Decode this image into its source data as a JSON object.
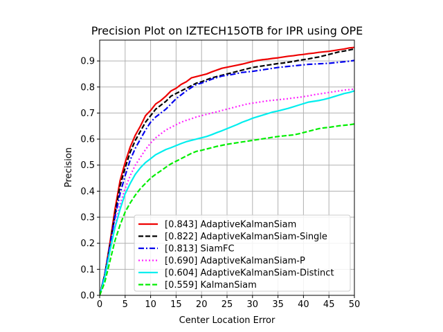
{
  "chart_data": {
    "type": "line",
    "title": "Precision Plot on IZTECH15OTB for IPR using OPE",
    "xlabel": "Center Location Error",
    "ylabel": "Precision",
    "xlim": [
      0,
      50
    ],
    "ylim": [
      0,
      0.98
    ],
    "xticks": [
      0,
      5,
      10,
      15,
      20,
      25,
      30,
      35,
      40,
      45,
      50
    ],
    "yticks": [
      0.0,
      0.1,
      0.2,
      0.3,
      0.4,
      0.5,
      0.6,
      0.7,
      0.8,
      0.9
    ],
    "grid": true,
    "legend_position": "bottom-right",
    "x": [
      0,
      1,
      2,
      3,
      4,
      5,
      6,
      7,
      8,
      9,
      10,
      11,
      12,
      13,
      14,
      15,
      16,
      17,
      18,
      19,
      20,
      21,
      22,
      23,
      24,
      25,
      26,
      27,
      28,
      29,
      30,
      31,
      32,
      33,
      34,
      35,
      36,
      37,
      38,
      39,
      40,
      41,
      42,
      43,
      44,
      45,
      46,
      47,
      48,
      49,
      50
    ],
    "series": [
      {
        "name": "[0.843] AdaptiveKalmanSiam",
        "color": "#ee0000",
        "dash": "solid",
        "values": [
          0.0,
          0.08,
          0.2,
          0.33,
          0.44,
          0.51,
          0.57,
          0.615,
          0.65,
          0.69,
          0.71,
          0.735,
          0.748,
          0.765,
          0.785,
          0.795,
          0.81,
          0.82,
          0.835,
          0.84,
          0.845,
          0.85,
          0.858,
          0.865,
          0.872,
          0.876,
          0.88,
          0.884,
          0.888,
          0.893,
          0.898,
          0.902,
          0.905,
          0.907,
          0.91,
          0.912,
          0.915,
          0.918,
          0.92,
          0.923,
          0.925,
          0.928,
          0.93,
          0.933,
          0.935,
          0.937,
          0.94,
          0.943,
          0.946,
          0.95,
          0.952
        ]
      },
      {
        "name": "[0.822] AdaptiveKalmanSiam-Single",
        "color": "#000000",
        "dash": "dashed",
        "values": [
          0.0,
          0.08,
          0.19,
          0.31,
          0.42,
          0.49,
          0.55,
          0.595,
          0.63,
          0.665,
          0.69,
          0.715,
          0.73,
          0.745,
          0.765,
          0.775,
          0.785,
          0.795,
          0.805,
          0.815,
          0.82,
          0.828,
          0.835,
          0.84,
          0.845,
          0.85,
          0.855,
          0.86,
          0.865,
          0.87,
          0.875,
          0.878,
          0.881,
          0.884,
          0.887,
          0.89,
          0.892,
          0.895,
          0.898,
          0.902,
          0.905,
          0.908,
          0.912,
          0.915,
          0.92,
          0.925,
          0.93,
          0.935,
          0.938,
          0.942,
          0.946
        ]
      },
      {
        "name": "[0.813] SiamFC",
        "color": "#0000ee",
        "dash": "dashdot",
        "values": [
          0.0,
          0.08,
          0.19,
          0.3,
          0.39,
          0.46,
          0.52,
          0.565,
          0.6,
          0.635,
          0.665,
          0.685,
          0.7,
          0.715,
          0.735,
          0.755,
          0.77,
          0.785,
          0.798,
          0.81,
          0.815,
          0.822,
          0.83,
          0.836,
          0.842,
          0.845,
          0.848,
          0.852,
          0.856,
          0.858,
          0.86,
          0.863,
          0.866,
          0.869,
          0.872,
          0.875,
          0.877,
          0.879,
          0.881,
          0.883,
          0.885,
          0.887,
          0.888,
          0.889,
          0.89,
          0.891,
          0.893,
          0.895,
          0.897,
          0.899,
          0.902
        ]
      },
      {
        "name": "[0.690] AdaptiveKalmanSiam-P",
        "color": "#ff22ff",
        "dash": "dotted",
        "values": [
          0.0,
          0.07,
          0.17,
          0.27,
          0.35,
          0.41,
          0.46,
          0.5,
          0.53,
          0.56,
          0.585,
          0.605,
          0.62,
          0.635,
          0.645,
          0.655,
          0.665,
          0.672,
          0.678,
          0.685,
          0.69,
          0.695,
          0.7,
          0.705,
          0.71,
          0.715,
          0.72,
          0.725,
          0.73,
          0.735,
          0.738,
          0.741,
          0.744,
          0.747,
          0.749,
          0.751,
          0.753,
          0.755,
          0.758,
          0.76,
          0.763,
          0.766,
          0.77,
          0.773,
          0.776,
          0.779,
          0.782,
          0.785,
          0.788,
          0.79,
          0.792
        ]
      },
      {
        "name": "[0.604] AdaptiveKalmanSiam-Distinct",
        "color": "#00eeee",
        "dash": "solid",
        "values": [
          0.0,
          0.07,
          0.17,
          0.26,
          0.33,
          0.39,
          0.43,
          0.465,
          0.49,
          0.51,
          0.525,
          0.54,
          0.55,
          0.56,
          0.567,
          0.575,
          0.583,
          0.59,
          0.595,
          0.6,
          0.605,
          0.61,
          0.617,
          0.625,
          0.632,
          0.64,
          0.648,
          0.656,
          0.665,
          0.672,
          0.68,
          0.686,
          0.692,
          0.698,
          0.704,
          0.708,
          0.713,
          0.718,
          0.724,
          0.73,
          0.736,
          0.742,
          0.745,
          0.748,
          0.752,
          0.757,
          0.763,
          0.769,
          0.775,
          0.779,
          0.785
        ]
      },
      {
        "name": "[0.559] KalmanSiam",
        "color": "#00ee00",
        "dash": "dashed",
        "values": [
          0.0,
          0.05,
          0.13,
          0.21,
          0.27,
          0.32,
          0.355,
          0.385,
          0.41,
          0.43,
          0.45,
          0.465,
          0.478,
          0.492,
          0.505,
          0.515,
          0.525,
          0.535,
          0.545,
          0.553,
          0.557,
          0.562,
          0.567,
          0.572,
          0.576,
          0.58,
          0.583,
          0.586,
          0.589,
          0.592,
          0.595,
          0.598,
          0.601,
          0.604,
          0.607,
          0.61,
          0.612,
          0.614,
          0.616,
          0.62,
          0.625,
          0.63,
          0.635,
          0.64,
          0.643,
          0.645,
          0.648,
          0.651,
          0.653,
          0.655,
          0.658
        ]
      }
    ]
  }
}
